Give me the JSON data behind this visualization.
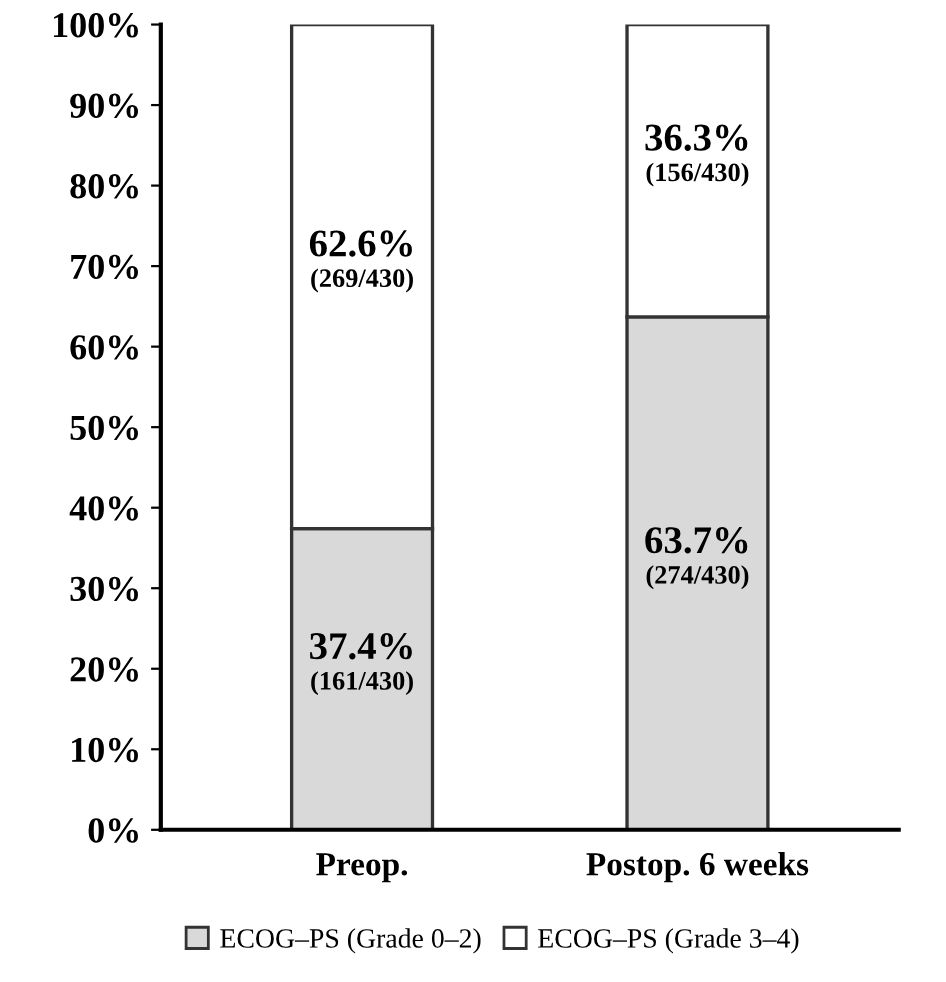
{
  "chart_data": {
    "type": "bar",
    "stacked": true,
    "categories": [
      "Preop.",
      "Postop. 6 weeks"
    ],
    "series": [
      {
        "name": "ECOG–PS (Grade 0–2)",
        "color": "#d9d9d9",
        "values": [
          37.4,
          63.7
        ],
        "value_labels": [
          "37.4%\n(161/430)",
          "63.7%\n(274/430)"
        ]
      },
      {
        "name": "ECOG–PS (Grade 3–4)",
        "color": "#ffffff",
        "values": [
          62.6,
          36.3
        ],
        "value_labels": [
          "62.6%\n(269/430)",
          "36.3%\n(156/430)"
        ]
      }
    ],
    "ylim": [
      0,
      100
    ],
    "yticks": [
      {
        "value": 0,
        "label": "0%"
      },
      {
        "value": 10,
        "label": "10%"
      },
      {
        "value": 20,
        "label": "20%"
      },
      {
        "value": 30,
        "label": "30%"
      },
      {
        "value": 40,
        "label": "40%"
      },
      {
        "value": 50,
        "label": "50%"
      },
      {
        "value": 60,
        "label": "60%"
      },
      {
        "value": 70,
        "label": "70%"
      },
      {
        "value": 80,
        "label": "80%"
      },
      {
        "value": 90,
        "label": "90%"
      },
      {
        "value": 100,
        "label": "100%"
      }
    ],
    "grid": false,
    "legend": "bottom"
  }
}
